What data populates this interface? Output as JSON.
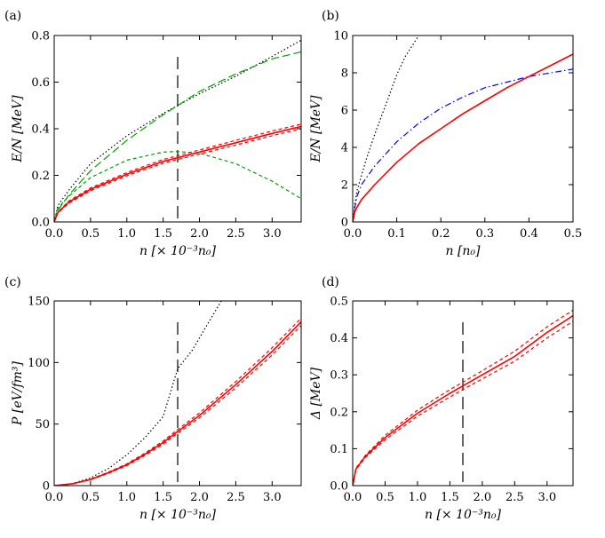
{
  "colors": {
    "red": "#ff0000",
    "green": "#00a000",
    "blue": "#0000ff",
    "black": "#000000"
  },
  "chart_data": [
    {
      "panel": "(a)",
      "type": "line",
      "xlabel": "n [× 10⁻³n₀]",
      "ylabel": "E/N [MeV]",
      "xlim": [
        0,
        3.4
      ],
      "ylim": [
        0,
        0.8
      ],
      "xticks": [
        0.0,
        0.5,
        1.0,
        1.5,
        2.0,
        2.5,
        3.0
      ],
      "xtick_labels": [
        "0.0",
        "0.5",
        "1.0",
        "1.5",
        "2.0",
        "2.5",
        "3.0"
      ],
      "yticks": [
        0.0,
        0.2,
        0.4,
        0.6,
        0.8
      ],
      "ytick_labels": [
        "0.0",
        "0.2",
        "0.4",
        "0.6",
        "0.8"
      ],
      "vline": 1.7,
      "series": [
        {
          "style": "dotted",
          "color": "black",
          "x": [
            0,
            0.05,
            0.2,
            0.5,
            1.0,
            1.5,
            1.7,
            2.0,
            2.5,
            3.0,
            3.4
          ],
          "y": [
            0,
            0.07,
            0.136,
            0.25,
            0.37,
            0.465,
            0.5,
            0.55,
            0.625,
            0.71,
            0.78
          ]
        },
        {
          "style": "longdash",
          "color": "green",
          "x": [
            0,
            0.05,
            0.2,
            0.5,
            1.0,
            1.5,
            1.7,
            2.0,
            2.5,
            3.0,
            3.4
          ],
          "y": [
            0,
            0.05,
            0.115,
            0.22,
            0.35,
            0.46,
            0.5,
            0.56,
            0.635,
            0.7,
            0.73
          ]
        },
        {
          "style": "dashed",
          "color": "green",
          "x": [
            0,
            0.05,
            0.2,
            0.5,
            1.0,
            1.5,
            1.7,
            2.0,
            2.5,
            3.0,
            3.4
          ],
          "y": [
            0,
            0.06,
            0.11,
            0.19,
            0.265,
            0.3,
            0.302,
            0.295,
            0.25,
            0.175,
            0.1
          ]
        },
        {
          "style": "solid",
          "color": "red",
          "x": [
            0,
            0.05,
            0.2,
            0.5,
            1.0,
            1.5,
            1.7,
            2.0,
            2.5,
            3.0,
            3.4
          ],
          "y": [
            0,
            0.04,
            0.085,
            0.14,
            0.205,
            0.26,
            0.276,
            0.3,
            0.34,
            0.38,
            0.41
          ]
        },
        {
          "style": "dashed",
          "color": "red",
          "x": [
            0,
            0.05,
            0.2,
            0.5,
            1.0,
            1.5,
            1.7,
            2.0,
            2.5,
            3.0,
            3.4
          ],
          "y": [
            0,
            0.042,
            0.09,
            0.146,
            0.212,
            0.268,
            0.284,
            0.309,
            0.35,
            0.39,
            0.42
          ]
        },
        {
          "style": "dashed",
          "color": "red",
          "x": [
            0,
            0.05,
            0.2,
            0.5,
            1.0,
            1.5,
            1.7,
            2.0,
            2.5,
            3.0,
            3.4
          ],
          "y": [
            0,
            0.038,
            0.08,
            0.134,
            0.198,
            0.252,
            0.268,
            0.291,
            0.33,
            0.37,
            0.4
          ]
        }
      ]
    },
    {
      "panel": "(b)",
      "type": "line",
      "xlabel": "n [n₀]",
      "ylabel": "E/N [MeV]",
      "xlim": [
        0,
        0.5
      ],
      "ylim": [
        0,
        10
      ],
      "xticks": [
        0.0,
        0.1,
        0.2,
        0.3,
        0.4,
        0.5
      ],
      "xtick_labels": [
        "0.0",
        "0.1",
        "0.2",
        "0.3",
        "0.4",
        "0.5"
      ],
      "yticks": [
        0,
        2,
        4,
        6,
        8,
        10
      ],
      "ytick_labels": [
        "0",
        "2",
        "4",
        "6",
        "8",
        "10"
      ],
      "series": [
        {
          "style": "dotted",
          "color": "black",
          "x": [
            0,
            0.005,
            0.01,
            0.02,
            0.03,
            0.05,
            0.08,
            0.1,
            0.12,
            0.15
          ],
          "y": [
            0,
            1.0,
            1.7,
            2.5,
            3.3,
            4.7,
            6.6,
            7.9,
            8.9,
            10.0
          ]
        },
        {
          "style": "dashdot",
          "color": "blue",
          "x": [
            0,
            0.005,
            0.01,
            0.02,
            0.05,
            0.1,
            0.15,
            0.2,
            0.25,
            0.3,
            0.35,
            0.4,
            0.45,
            0.5
          ],
          "y": [
            0,
            0.8,
            1.4,
            2.0,
            3.0,
            4.3,
            5.3,
            6.1,
            6.7,
            7.2,
            7.5,
            7.8,
            8.0,
            8.2
          ]
        },
        {
          "style": "solid",
          "color": "red",
          "x": [
            0,
            0.005,
            0.01,
            0.02,
            0.05,
            0.1,
            0.15,
            0.2,
            0.25,
            0.3,
            0.35,
            0.4,
            0.45,
            0.5
          ],
          "y": [
            0,
            0.55,
            0.8,
            1.2,
            2.0,
            3.2,
            4.2,
            5.0,
            5.8,
            6.5,
            7.2,
            7.8,
            8.4,
            9.0
          ]
        }
      ]
    },
    {
      "panel": "(c)",
      "type": "line",
      "xlabel": "n [× 10⁻³n₀]",
      "ylabel": "P [eV/fm³]",
      "xlim": [
        0,
        3.4
      ],
      "ylim": [
        0,
        150
      ],
      "xticks": [
        0.0,
        0.5,
        1.0,
        1.5,
        2.0,
        2.5,
        3.0
      ],
      "xtick_labels": [
        "0.0",
        "0.5",
        "1.0",
        "1.5",
        "2.0",
        "2.5",
        "3.0"
      ],
      "yticks": [
        0,
        50,
        100,
        150
      ],
      "ytick_labels": [
        "0",
        "50",
        "100",
        "150"
      ],
      "vline": 1.7,
      "series": [
        {
          "style": "dotted",
          "color": "black",
          "x": [
            0,
            0.25,
            0.5,
            0.75,
            1.0,
            1.25,
            1.5,
            1.7,
            1.9,
            2.1,
            2.3
          ],
          "y": [
            0,
            1.6,
            6.3,
            14,
            25,
            39,
            56,
            95,
            110,
            130,
            150
          ]
        },
        {
          "style": "solid",
          "color": "red",
          "x": [
            0,
            0.25,
            0.5,
            0.75,
            1.0,
            1.25,
            1.5,
            1.7,
            2.0,
            2.5,
            3.0,
            3.4
          ],
          "y": [
            0,
            1.5,
            5,
            10.5,
            17,
            25.5,
            35,
            44,
            57,
            82,
            109,
            133
          ]
        },
        {
          "style": "dashed",
          "color": "red",
          "x": [
            0,
            0.25,
            0.5,
            0.75,
            1.0,
            1.25,
            1.5,
            1.7,
            2.0,
            2.5,
            3.0,
            3.4
          ],
          "y": [
            0,
            1.6,
            5.3,
            11,
            17.7,
            26.5,
            36.3,
            45.5,
            59,
            84.5,
            112,
            136
          ]
        },
        {
          "style": "dashed",
          "color": "red",
          "x": [
            0,
            0.25,
            0.5,
            0.75,
            1.0,
            1.25,
            1.5,
            1.7,
            2.0,
            2.5,
            3.0,
            3.4
          ],
          "y": [
            0,
            1.4,
            4.7,
            10,
            16.3,
            24.5,
            33.7,
            42.5,
            55,
            79.5,
            106,
            130
          ]
        }
      ]
    },
    {
      "panel": "(d)",
      "type": "line",
      "xlabel": "n [× 10⁻³n₀]",
      "ylabel": "Δ [MeV]",
      "xlim": [
        0,
        3.4
      ],
      "ylim": [
        0,
        0.5
      ],
      "xticks": [
        0.0,
        0.5,
        1.0,
        1.5,
        2.0,
        2.5,
        3.0
      ],
      "xtick_labels": [
        "0.0",
        "0.5",
        "1.0",
        "1.5",
        "2.0",
        "2.5",
        "3.0"
      ],
      "yticks": [
        0.0,
        0.1,
        0.2,
        0.3,
        0.4,
        0.5
      ],
      "ytick_labels": [
        "0.0",
        "0.1",
        "0.2",
        "0.3",
        "0.4",
        "0.5"
      ],
      "vline": 1.7,
      "series": [
        {
          "style": "solid",
          "color": "red",
          "x": [
            0,
            0.05,
            0.2,
            0.5,
            1.0,
            1.5,
            1.7,
            2.0,
            2.5,
            3.0,
            3.4
          ],
          "y": [
            0,
            0.045,
            0.08,
            0.13,
            0.196,
            0.25,
            0.27,
            0.3,
            0.35,
            0.415,
            0.46
          ]
        },
        {
          "style": "dashed",
          "color": "red",
          "x": [
            0,
            0.05,
            0.2,
            0.5,
            1.0,
            1.5,
            1.7,
            2.0,
            2.5,
            3.0,
            3.4
          ],
          "y": [
            0,
            0.047,
            0.083,
            0.136,
            0.204,
            0.26,
            0.28,
            0.311,
            0.364,
            0.43,
            0.475
          ]
        },
        {
          "style": "dashed",
          "color": "red",
          "x": [
            0,
            0.05,
            0.2,
            0.5,
            1.0,
            1.5,
            1.7,
            2.0,
            2.5,
            3.0,
            3.4
          ],
          "y": [
            0,
            0.043,
            0.077,
            0.124,
            0.188,
            0.24,
            0.26,
            0.289,
            0.337,
            0.4,
            0.445
          ]
        }
      ]
    }
  ]
}
